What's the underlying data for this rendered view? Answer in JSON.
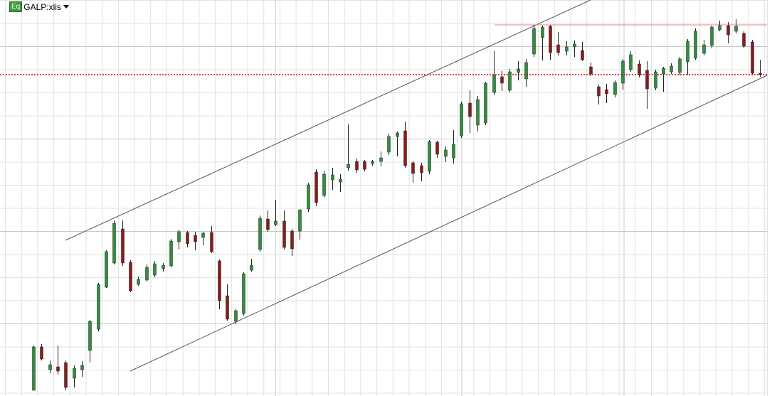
{
  "header": {
    "badge": "Eq",
    "symbol": "GALP:xlis"
  },
  "chart_data": {
    "type": "candlestick",
    "up_color": "#2f8f3a",
    "down_color": "#8b1a1a",
    "ylim": [
      0,
      557
    ],
    "ohlc": [
      [
        8,
        71,
        8,
        69
      ],
      [
        69,
        73,
        50,
        52
      ],
      [
        37,
        50,
        32,
        44
      ],
      [
        41,
        71,
        30,
        35
      ],
      [
        47,
        50,
        8,
        12
      ],
      [
        25,
        43,
        12,
        39
      ],
      [
        37,
        49,
        27,
        43
      ],
      [
        64,
        107,
        47,
        105
      ],
      [
        94,
        159,
        91,
        157
      ],
      [
        153,
        205,
        152,
        203
      ],
      [
        187,
        247,
        185,
        243
      ],
      [
        235,
        247,
        183,
        187
      ],
      [
        188,
        191,
        146,
        148
      ],
      [
        157,
        168,
        155,
        164
      ],
      [
        163,
        185,
        161,
        181
      ],
      [
        170,
        190,
        167,
        186
      ],
      [
        179,
        187,
        175,
        184
      ],
      [
        183,
        221,
        181,
        218
      ],
      [
        217,
        234,
        206,
        231
      ],
      [
        230,
        232,
        209,
        214
      ],
      [
        226,
        231,
        205,
        217
      ],
      [
        223,
        231,
        212,
        229
      ],
      [
        230,
        239,
        201,
        203
      ],
      [
        190,
        192,
        122,
        134
      ],
      [
        141,
        157,
        106,
        108
      ],
      [
        105,
        122,
        101,
        120
      ],
      [
        116,
        174,
        113,
        172
      ],
      [
        177,
        193,
        175,
        184
      ],
      [
        206,
        254,
        203,
        250
      ],
      [
        249,
        261,
        231,
        234
      ],
      [
        241,
        276,
        239,
        246
      ],
      [
        246,
        261,
        206,
        209
      ],
      [
        232,
        235,
        197,
        207
      ],
      [
        232,
        262,
        220,
        262
      ],
      [
        263,
        300,
        259,
        297
      ],
      [
        315,
        319,
        267,
        272
      ],
      [
        282,
        316,
        279,
        312
      ],
      [
        304,
        321,
        290,
        311
      ],
      [
        301,
        312,
        287,
        305
      ],
      [
        321,
        382,
        317,
        326
      ],
      [
        330,
        334,
        314,
        318
      ],
      [
        330,
        332,
        316,
        319
      ],
      [
        327,
        332,
        324,
        330
      ],
      [
        330,
        344,
        323,
        335
      ],
      [
        343,
        369,
        339,
        365
      ],
      [
        365,
        372,
        337,
        370
      ],
      [
        373,
        386,
        321,
        324
      ],
      [
        328,
        331,
        300,
        313
      ],
      [
        324,
        328,
        302,
        314
      ],
      [
        316,
        360,
        312,
        358
      ],
      [
        357,
        359,
        335,
        340
      ],
      [
        337,
        351,
        329,
        346
      ],
      [
        335,
        374,
        327,
        354
      ],
      [
        366,
        414,
        363,
        411
      ],
      [
        412,
        430,
        370,
        393
      ],
      [
        381,
        422,
        372,
        417
      ],
      [
        384,
        442,
        381,
        440
      ],
      [
        427,
        485,
        423,
        451
      ],
      [
        449,
        457,
        429,
        440
      ],
      [
        430,
        460,
        427,
        456
      ],
      [
        455,
        471,
        444,
        460
      ],
      [
        446,
        474,
        435,
        469
      ],
      [
        481,
        522,
        477,
        517
      ],
      [
        504,
        521,
        472,
        519
      ],
      [
        520,
        522,
        473,
        483
      ],
      [
        494,
        512,
        479,
        483
      ],
      [
        485,
        499,
        479,
        491
      ],
      [
        491,
        500,
        477,
        495
      ],
      [
        486,
        498,
        471,
        473
      ],
      [
        463,
        469,
        450,
        453
      ],
      [
        435,
        438,
        410,
        422
      ],
      [
        431,
        439,
        412,
        425
      ],
      [
        424,
        444,
        420,
        441
      ],
      [
        440,
        474,
        431,
        471
      ],
      [
        459,
        485,
        456,
        480
      ],
      [
        467,
        472,
        448,
        452
      ],
      [
        458,
        471,
        404,
        432
      ],
      [
        433,
        459,
        430,
        456
      ],
      [
        453,
        463,
        428,
        461
      ],
      [
        456,
        468,
        453,
        464
      ],
      [
        455,
        477,
        451,
        474
      ],
      [
        470,
        502,
        452,
        499
      ],
      [
        475,
        517,
        473,
        513
      ],
      [
        482,
        501,
        479,
        494
      ],
      [
        493,
        521,
        489,
        519
      ],
      [
        515,
        528,
        513,
        521
      ],
      [
        521,
        526,
        496,
        508
      ],
      [
        513,
        530,
        510,
        520
      ],
      [
        510,
        513,
        489,
        492
      ],
      [
        498,
        501,
        452,
        454
      ],
      [
        454,
        473,
        449,
        452
      ]
    ]
  }
}
